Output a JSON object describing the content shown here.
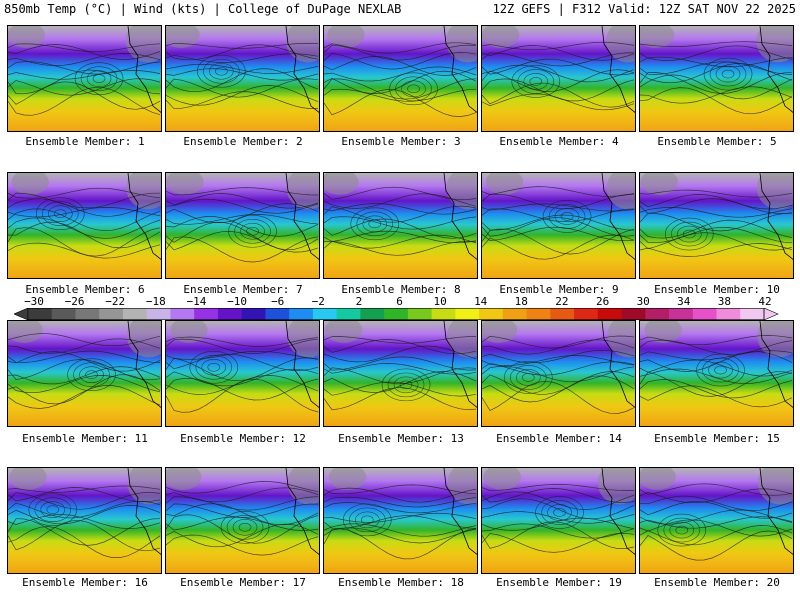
{
  "header": {
    "left": "850mb Temp (°C) | Wind (kts) | College of DuPage NEXLAB",
    "right": "12Z GEFS | F312 Valid: 12Z SAT NOV 22 2025"
  },
  "panels": [
    {
      "label": "Ensemble Member: 1"
    },
    {
      "label": "Ensemble Member: 2"
    },
    {
      "label": "Ensemble Member: 3"
    },
    {
      "label": "Ensemble Member: 4"
    },
    {
      "label": "Ensemble Member: 5"
    },
    {
      "label": "Ensemble Member: 6"
    },
    {
      "label": "Ensemble Member: 7"
    },
    {
      "label": "Ensemble Member: 8"
    },
    {
      "label": "Ensemble Member: 9"
    },
    {
      "label": "Ensemble Member: 10"
    },
    {
      "label": "Ensemble Member: 11"
    },
    {
      "label": "Ensemble Member: 12"
    },
    {
      "label": "Ensemble Member: 13"
    },
    {
      "label": "Ensemble Member: 14"
    },
    {
      "label": "Ensemble Member: 15"
    },
    {
      "label": "Ensemble Member: 16"
    },
    {
      "label": "Ensemble Member: 17"
    },
    {
      "label": "Ensemble Member: 18"
    },
    {
      "label": "Ensemble Member: 19"
    },
    {
      "label": "Ensemble Member: 20"
    }
  ],
  "colorbar": {
    "tick_labels": [
      "−30",
      "−26",
      "−22",
      "−18",
      "−14",
      "−10",
      "−6",
      "−2",
      "2",
      "6",
      "10",
      "14",
      "18",
      "22",
      "26",
      "30",
      "34",
      "38",
      "42"
    ],
    "colors": [
      "#3c3c3c",
      "#5a5a5a",
      "#787878",
      "#969696",
      "#b4b4b4",
      "#c8b4e6",
      "#b478f0",
      "#9632e6",
      "#6414c8",
      "#3214b4",
      "#1e50dc",
      "#1e8cf0",
      "#28c8f0",
      "#14c8a0",
      "#14a050",
      "#32b428",
      "#78c81e",
      "#c8dc14",
      "#f0f014",
      "#f0c814",
      "#f0a014",
      "#f08214",
      "#e65a14",
      "#dc2814",
      "#c80a0a",
      "#a00a28",
      "#b41e64",
      "#c83296",
      "#e650c8",
      "#f08cdc",
      "#f0c8f0"
    ]
  }
}
